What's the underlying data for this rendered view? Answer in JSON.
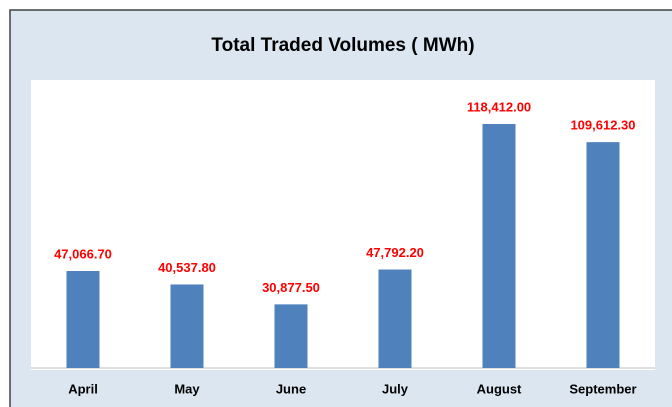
{
  "chart_data": {
    "type": "bar",
    "title": "Total Traded Volumes ( MWh)",
    "categories": [
      "April",
      "May",
      "June",
      "July",
      "August",
      "September"
    ],
    "values": [
      47066.7,
      40537.8,
      30877.5,
      47792.2,
      118412.0,
      109612.3
    ],
    "value_labels": [
      "47,066.70",
      "40,537.80",
      "30,877.50",
      "47,792.20",
      "118,412.00",
      "109,612.30"
    ],
    "color": "#4f81bd"
  }
}
